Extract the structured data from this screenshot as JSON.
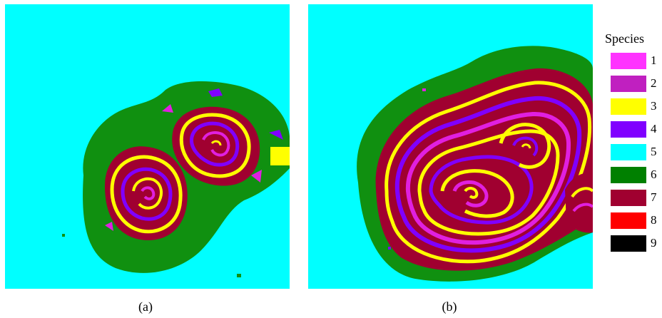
{
  "captions": {
    "a": "(a)",
    "b": "(b)"
  },
  "legend": {
    "title": "Species",
    "entries": [
      {
        "label": "1",
        "color": "#ff33ff"
      },
      {
        "label": "2",
        "color": "#c020c0"
      },
      {
        "label": "3",
        "color": "#ffff00"
      },
      {
        "label": "4",
        "color": "#8000ff"
      },
      {
        "label": "5",
        "color": "#00ffff"
      },
      {
        "label": "6",
        "color": "#008000"
      },
      {
        "label": "7",
        "color": "#a00030"
      },
      {
        "label": "8",
        "color": "#ff0000"
      },
      {
        "label": "9",
        "color": "#000000"
      }
    ]
  },
  "colors": {
    "background_species": "#00ffff",
    "green": "#109010",
    "maroon": "#a00030",
    "yellow": "#ffff00",
    "purple": "#8000ff",
    "magenta": "#e020e0"
  }
}
